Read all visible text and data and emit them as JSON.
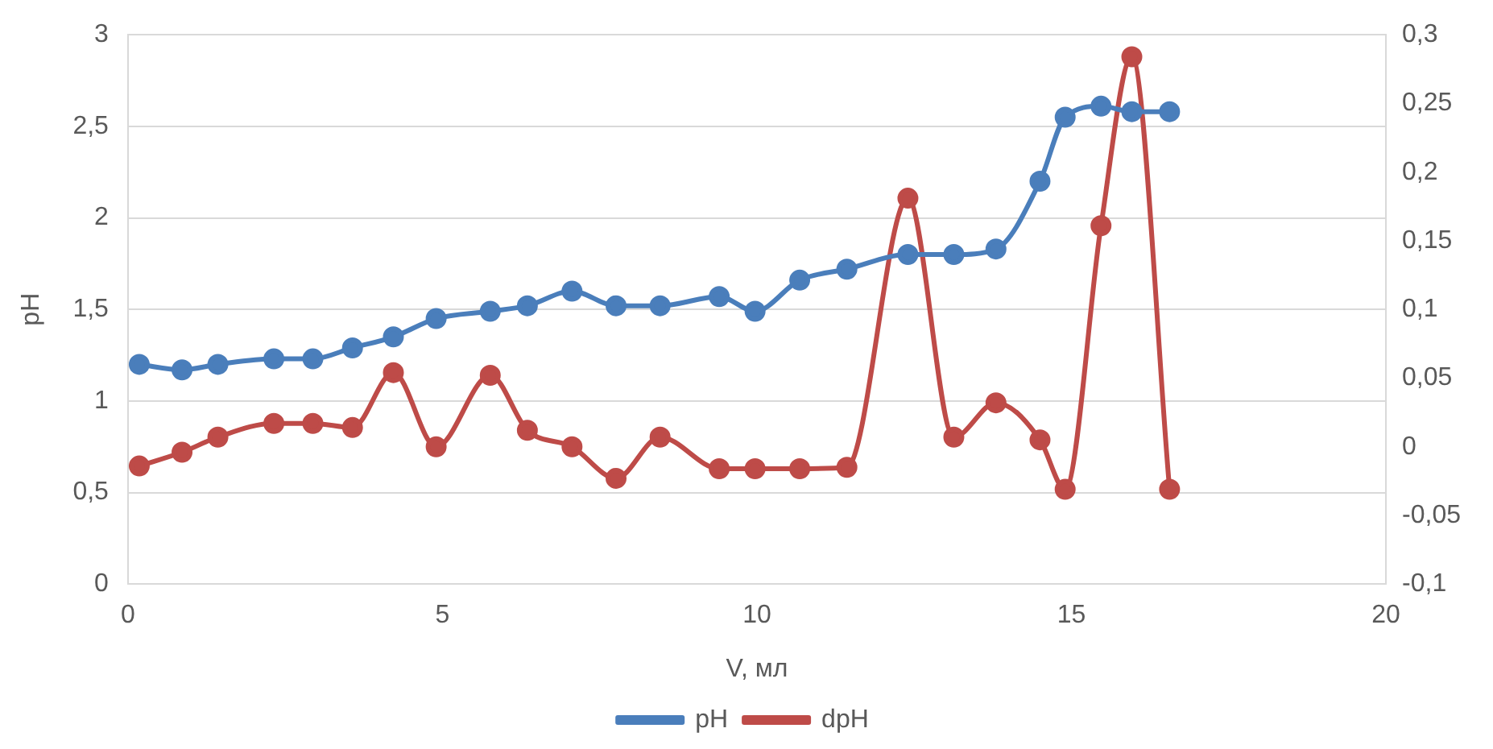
{
  "chart_data": {
    "type": "line",
    "xlabel": "V, мл",
    "ylabel": "pH",
    "x": [
      0.18,
      0.86,
      1.43,
      2.32,
      2.94,
      3.57,
      4.22,
      4.9,
      5.76,
      6.35,
      7.06,
      7.76,
      8.46,
      9.4,
      9.97,
      10.68,
      11.43,
      12.4,
      13.13,
      13.8,
      14.5,
      14.9,
      15.47,
      15.96,
      16.56
    ],
    "series": [
      {
        "name": "pH",
        "color": "#4a7ebb",
        "values": [
          1.2,
          1.17,
          1.2,
          1.23,
          1.23,
          1.29,
          1.35,
          1.45,
          1.49,
          1.52,
          1.6,
          1.52,
          1.52,
          1.57,
          1.49,
          1.66,
          1.72,
          1.8,
          1.8,
          1.83,
          2.2,
          2.55,
          2.61,
          2.58,
          2.58
        ]
      },
      {
        "name": "dpH",
        "color": "#be4b48",
        "axis": "y2",
        "values": [
          -0.014,
          -0.004,
          0.007,
          0.017,
          0.017,
          0.014,
          0.054,
          0.0,
          0.052,
          0.012,
          0.0,
          -0.023,
          0.007,
          -0.016,
          -0.016,
          -0.016,
          -0.015,
          0.181,
          0.007,
          0.032,
          0.005,
          -0.031,
          0.161,
          0.284,
          -0.031
        ]
      }
    ],
    "xlim": [
      0,
      20
    ],
    "xticks": [
      0,
      5,
      10,
      15,
      20
    ],
    "ylim": [
      0,
      3
    ],
    "yticks": [
      0,
      {
        "value": 0.5,
        "label": "0,5"
      },
      1,
      {
        "value": 1.5,
        "label": "1,5"
      },
      2,
      {
        "value": 2.5,
        "label": "2,5"
      },
      3
    ],
    "y2lim": [
      -0.1,
      0.3
    ],
    "y2ticks": [
      {
        "value": -0.1,
        "label": "-0,1"
      },
      {
        "value": -0.05,
        "label": "-0,05"
      },
      0,
      {
        "value": 0.05,
        "label": "0,05"
      },
      {
        "value": 0.1,
        "label": "0,1"
      },
      {
        "value": 0.15,
        "label": "0,15"
      },
      {
        "value": 0.2,
        "label": "0,2"
      },
      {
        "value": 0.25,
        "label": "0,25"
      },
      {
        "value": 0.3,
        "label": "0,3"
      }
    ],
    "grid": "y",
    "legend": "bottom",
    "marker": "circle",
    "line_style": "solid"
  }
}
